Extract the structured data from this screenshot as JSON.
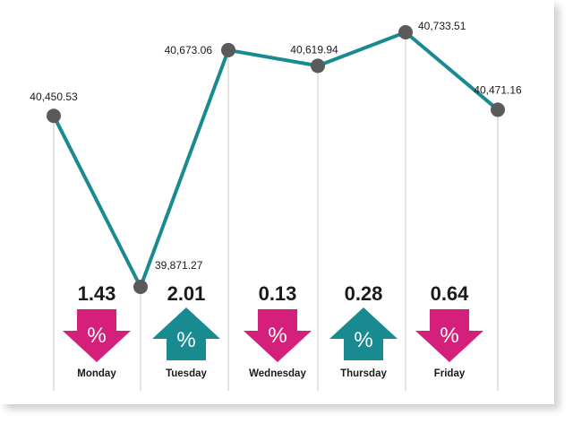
{
  "chart_data": {
    "type": "line",
    "categories": [
      "Monday",
      "",
      "Tuesday",
      "Wednesday",
      "Thursday",
      "Friday"
    ],
    "values": [
      40450.53,
      39871.27,
      40673.06,
      40619.94,
      40733.51,
      40471.16
    ],
    "point_labels": [
      "40,450.53",
      "39,871.27",
      "40,673.06",
      "40,619.94",
      "40,733.51",
      "40,471.16"
    ],
    "ylim": [
      39871.27,
      40733.51
    ],
    "changes": [
      {
        "day": "Monday",
        "value": "1.43",
        "direction": "down",
        "symbol": "%"
      },
      {
        "day": "Tuesday",
        "value": "2.01",
        "direction": "up",
        "symbol": "%"
      },
      {
        "day": "Wednesday",
        "value": "0.13",
        "direction": "down",
        "symbol": "%"
      },
      {
        "day": "Thursday",
        "value": "0.28",
        "direction": "up",
        "symbol": "%"
      },
      {
        "day": "Friday",
        "value": "0.64",
        "direction": "down",
        "symbol": "%"
      }
    ],
    "colors": {
      "line": "#1a8a91",
      "point": "#5a5a5a",
      "down": "#d4207a",
      "up": "#1a8a91",
      "grid": "#c8c8c8",
      "text": "#1a1a1a"
    },
    "grid": true
  }
}
